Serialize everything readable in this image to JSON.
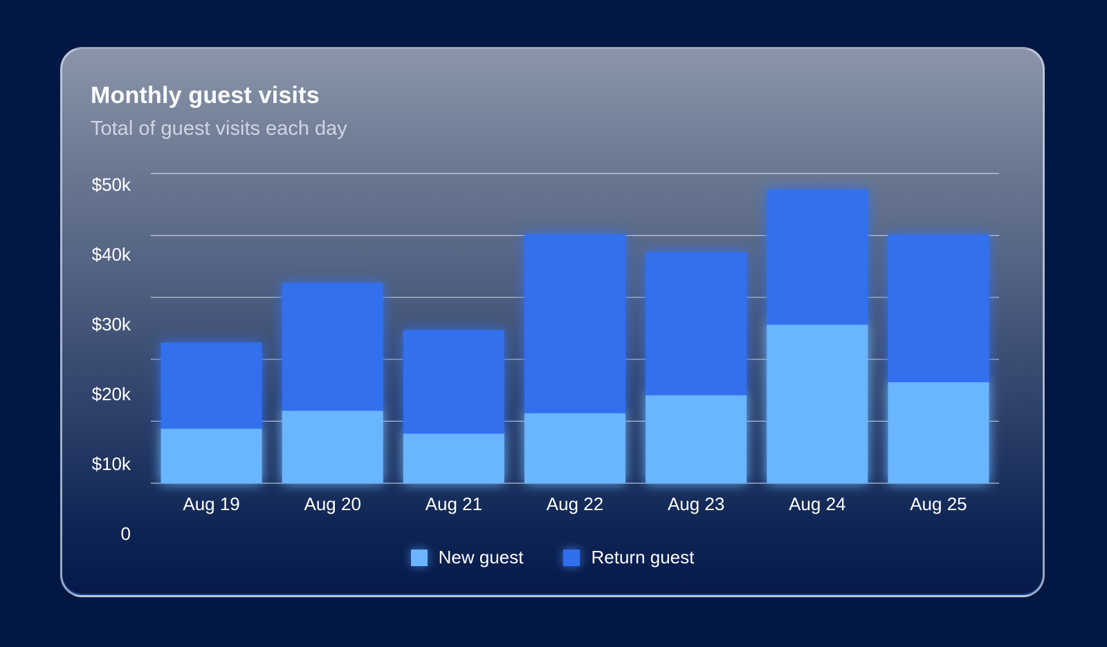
{
  "card": {
    "title": "Monthly guest visits",
    "subtitle": "Total of guest visits each day"
  },
  "chart_data": {
    "type": "bar",
    "stacked": true,
    "title": "Monthly guest visits",
    "subtitle": "Total of guest visits each day",
    "categories": [
      "Aug 19",
      "Aug 20",
      "Aug 21",
      "Aug 22",
      "Aug 23",
      "Aug 24",
      "Aug 25"
    ],
    "series": [
      {
        "name": "New guest",
        "color": "#6bb5ff",
        "values": [
          8.8,
          11.7,
          8.0,
          11.3,
          14.2,
          25.6,
          16.3
        ]
      },
      {
        "name": "Return guest",
        "color": "#3070ee",
        "values": [
          13.9,
          20.6,
          16.7,
          28.9,
          23.1,
          21.8,
          23.8
        ]
      }
    ],
    "y_ticks": [
      "0",
      "$10k",
      "$20k",
      "$30k",
      "$40k",
      "$50k"
    ],
    "ylim": [
      0,
      50
    ],
    "grid": true,
    "legend_position": "bottom-center"
  }
}
